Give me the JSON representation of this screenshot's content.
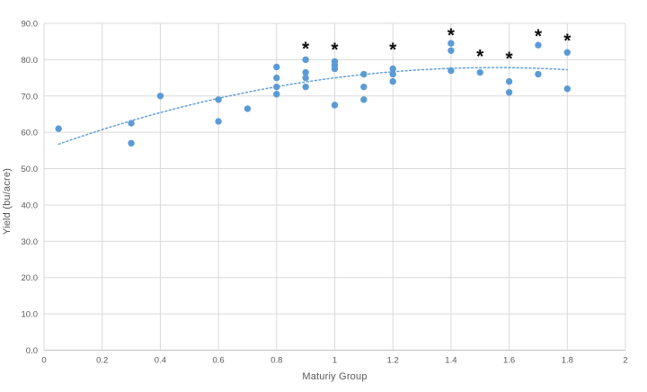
{
  "chart_data": {
    "type": "scatter",
    "title": "",
    "xlabel": "Maturiy Group",
    "ylabel": "Yield (bu/acre)",
    "xlim": [
      0,
      2
    ],
    "ylim": [
      0,
      90
    ],
    "grid": true,
    "legend": false,
    "x_ticks": [
      0,
      0.2,
      0.4,
      0.6,
      0.8,
      1,
      1.2,
      1.4,
      1.6,
      1.8,
      2
    ],
    "x_tick_labels": [
      "0",
      "0.2",
      "0.4",
      "0.6",
      "0.8",
      "1",
      "1.2",
      "1.4",
      "1.6",
      "1.8",
      "2"
    ],
    "y_ticks": [
      0,
      10,
      20,
      30,
      40,
      50,
      60,
      70,
      80,
      90
    ],
    "y_tick_labels": [
      "0.0",
      "10.0",
      "20.0",
      "30.0",
      "40.0",
      "50.0",
      "60.0",
      "70.0",
      "80.0",
      "90.0"
    ],
    "points": [
      [
        0.05,
        61
      ],
      [
        0.3,
        62.5
      ],
      [
        0.3,
        57
      ],
      [
        0.4,
        70
      ],
      [
        0.6,
        69
      ],
      [
        0.6,
        63
      ],
      [
        0.7,
        66.5
      ],
      [
        0.8,
        78
      ],
      [
        0.8,
        75
      ],
      [
        0.8,
        72.5
      ],
      [
        0.8,
        70.5
      ],
      [
        0.9,
        80
      ],
      [
        0.9,
        76.5
      ],
      [
        0.9,
        75
      ],
      [
        0.9,
        72.5
      ],
      [
        1.0,
        79.5
      ],
      [
        1.0,
        78.5
      ],
      [
        1.0,
        77.5
      ],
      [
        1.0,
        67.5
      ],
      [
        1.1,
        76
      ],
      [
        1.1,
        72.5
      ],
      [
        1.1,
        69
      ],
      [
        1.2,
        77.5
      ],
      [
        1.2,
        76
      ],
      [
        1.2,
        74
      ],
      [
        1.4,
        84.5
      ],
      [
        1.4,
        82.5
      ],
      [
        1.4,
        77
      ],
      [
        1.5,
        76.5
      ],
      [
        1.6,
        74
      ],
      [
        1.6,
        71
      ],
      [
        1.7,
        84
      ],
      [
        1.7,
        76
      ],
      [
        1.8,
        82
      ],
      [
        1.8,
        72
      ]
    ],
    "trendline": {
      "type": "polynomial",
      "degree": 2,
      "coefficients": {
        "a": 55.3,
        "b": 29.07,
        "c": -9.38
      },
      "x_start": 0.05,
      "x_end": 1.8,
      "style": "dotted"
    },
    "annotations": [
      {
        "symbol": "*",
        "x": 0.9,
        "y": 84.1
      },
      {
        "symbol": "*",
        "x": 1.0,
        "y": 83.8
      },
      {
        "symbol": "*",
        "x": 1.2,
        "y": 83.8
      },
      {
        "symbol": "*",
        "x": 1.4,
        "y": 87.8
      },
      {
        "symbol": "*",
        "x": 1.5,
        "y": 82.0
      },
      {
        "symbol": "*",
        "x": 1.6,
        "y": 81.3
      },
      {
        "symbol": "*",
        "x": 1.7,
        "y": 87.5
      },
      {
        "symbol": "*",
        "x": 1.8,
        "y": 86.3
      }
    ],
    "colors": {
      "point": "#5B9BD5",
      "trendline": "#5B9BD5",
      "gridline": "#D9D9D9",
      "axis_line": "#BFBFBF",
      "tick_label": "#595959",
      "axis_title": "#595959",
      "annotation": "#0d0d0d",
      "background": "#FFFFFF"
    }
  }
}
